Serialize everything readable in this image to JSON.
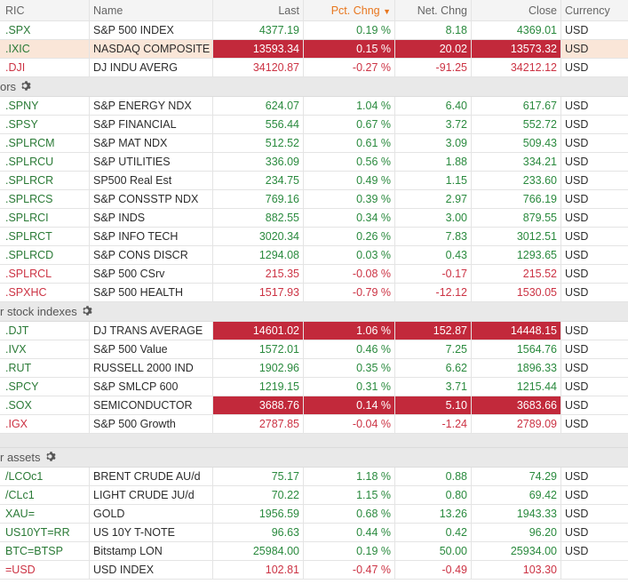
{
  "columns": {
    "ric": "RIC",
    "name": "Name",
    "last": "Last",
    "pct": "Pct. Chng",
    "sort_arrow": "▼",
    "net": "Net. Chng",
    "close": "Close",
    "currency": "Currency"
  },
  "group1": [
    {
      "ric": ".SPX",
      "name": "S&P 500 INDEX",
      "last": "4377.19",
      "pct": "0.19 %",
      "net": "8.18",
      "close": "4369.01",
      "ccy": "USD",
      "dir": "up"
    },
    {
      "ric": ".IXIC",
      "name": "NASDAQ COMPOSITE",
      "last": "13593.34",
      "pct": "0.15 %",
      "net": "20.02",
      "close": "13573.32",
      "ccy": "USD",
      "dir": "up",
      "highlight": "peach-red"
    },
    {
      "ric": ".DJI",
      "name": "DJ INDU AVERG",
      "last": "34120.87",
      "pct": "-0.27 %",
      "net": "-91.25",
      "close": "34212.12",
      "ccy": "USD",
      "dir": "down"
    }
  ],
  "section2": {
    "label": "ors"
  },
  "group2": [
    {
      "ric": ".SPNY",
      "name": "S&P ENERGY NDX",
      "last": "624.07",
      "pct": "1.04 %",
      "net": "6.40",
      "close": "617.67",
      "ccy": "USD",
      "dir": "up"
    },
    {
      "ric": ".SPSY",
      "name": "S&P FINANCIAL",
      "last": "556.44",
      "pct": "0.67 %",
      "net": "3.72",
      "close": "552.72",
      "ccy": "USD",
      "dir": "up"
    },
    {
      "ric": ".SPLRCM",
      "name": "S&P MAT NDX",
      "last": "512.52",
      "pct": "0.61 %",
      "net": "3.09",
      "close": "509.43",
      "ccy": "USD",
      "dir": "up"
    },
    {
      "ric": ".SPLRCU",
      "name": "S&P UTILITIES",
      "last": "336.09",
      "pct": "0.56 %",
      "net": "1.88",
      "close": "334.21",
      "ccy": "USD",
      "dir": "up"
    },
    {
      "ric": ".SPLRCR",
      "name": "SP500 Real Est",
      "last": "234.75",
      "pct": "0.49 %",
      "net": "1.15",
      "close": "233.60",
      "ccy": "USD",
      "dir": "up"
    },
    {
      "ric": ".SPLRCS",
      "name": "S&P CONSSTP NDX",
      "last": "769.16",
      "pct": "0.39 %",
      "net": "2.97",
      "close": "766.19",
      "ccy": "USD",
      "dir": "up"
    },
    {
      "ric": ".SPLRCI",
      "name": "S&P INDS",
      "last": "882.55",
      "pct": "0.34 %",
      "net": "3.00",
      "close": "879.55",
      "ccy": "USD",
      "dir": "up"
    },
    {
      "ric": ".SPLRCT",
      "name": "S&P INFO TECH",
      "last": "3020.34",
      "pct": "0.26 %",
      "net": "7.83",
      "close": "3012.51",
      "ccy": "USD",
      "dir": "up"
    },
    {
      "ric": ".SPLRCD",
      "name": "S&P CONS DISCR",
      "last": "1294.08",
      "pct": "0.03 %",
      "net": "0.43",
      "close": "1293.65",
      "ccy": "USD",
      "dir": "up"
    },
    {
      "ric": ".SPLRCL",
      "name": "S&P 500 CSrv",
      "last": "215.35",
      "pct": "-0.08 %",
      "net": "-0.17",
      "close": "215.52",
      "ccy": "USD",
      "dir": "down"
    },
    {
      "ric": ".SPXHC",
      "name": "S&P 500 HEALTH",
      "last": "1517.93",
      "pct": "-0.79 %",
      "net": "-12.12",
      "close": "1530.05",
      "ccy": "USD",
      "dir": "down"
    }
  ],
  "section3": {
    "label": "r stock indexes"
  },
  "group3": [
    {
      "ric": ".DJT",
      "name": "DJ TRANS AVERAGE",
      "last": "14601.02",
      "pct": "1.06 %",
      "net": "152.87",
      "close": "14448.15",
      "ccy": "USD",
      "dir": "up",
      "highlight": "red"
    },
    {
      "ric": ".IVX",
      "name": "S&P 500 Value",
      "last": "1572.01",
      "pct": "0.46 %",
      "net": "7.25",
      "close": "1564.76",
      "ccy": "USD",
      "dir": "up"
    },
    {
      "ric": ".RUT",
      "name": "RUSSELL 2000 IND",
      "last": "1902.96",
      "pct": "0.35 %",
      "net": "6.62",
      "close": "1896.33",
      "ccy": "USD",
      "dir": "up"
    },
    {
      "ric": ".SPCY",
      "name": "S&P SMLCP 600",
      "last": "1219.15",
      "pct": "0.31 %",
      "net": "3.71",
      "close": "1215.44",
      "ccy": "USD",
      "dir": "up"
    },
    {
      "ric": ".SOX",
      "name": "SEMICONDUCTOR",
      "last": "3688.76",
      "pct": "0.14 %",
      "net": "5.10",
      "close": "3683.66",
      "ccy": "USD",
      "dir": "up",
      "highlight": "red"
    },
    {
      "ric": ".IGX",
      "name": "S&P 500 Growth",
      "last": "2787.85",
      "pct": "-0.04 %",
      "net": "-1.24",
      "close": "2789.09",
      "ccy": "USD",
      "dir": "down"
    }
  ],
  "section4": {
    "label": "r assets"
  },
  "group4": [
    {
      "ric": "/LCOc1",
      "name": "BRENT CRUDE AU/d",
      "last": "75.17",
      "pct": "1.18 %",
      "net": "0.88",
      "close": "74.29",
      "ccy": "USD",
      "dir": "up"
    },
    {
      "ric": "/CLc1",
      "name": "LIGHT CRUDE JU/d",
      "last": "70.22",
      "pct": "1.15 %",
      "net": "0.80",
      "close": "69.42",
      "ccy": "USD",
      "dir": "up"
    },
    {
      "ric": "XAU=",
      "name": "GOLD",
      "last": "1956.59",
      "pct": "0.68 %",
      "net": "13.26",
      "close": "1943.33",
      "ccy": "USD",
      "dir": "up"
    },
    {
      "ric": "US10YT=RR",
      "name": "US 10Y T-NOTE",
      "last": "96.63",
      "pct": "0.44 %",
      "net": "0.42",
      "close": "96.20",
      "ccy": "USD",
      "dir": "up"
    },
    {
      "ric": "BTC=BTSP",
      "name": "Bitstamp LON",
      "last": "25984.00",
      "pct": "0.19 %",
      "net": "50.00",
      "close": "25934.00",
      "ccy": "USD",
      "dir": "up"
    },
    {
      "ric": "=USD",
      "name": "USD INDEX",
      "last": "102.81",
      "pct": "-0.47 %",
      "net": "-0.49",
      "close": "103.30",
      "ccy": "",
      "dir": "down"
    }
  ],
  "colors": {
    "up": "#2a8a3e",
    "down": "#cc3344",
    "highlight_red": "#c2293b",
    "highlight_peach": "#fae6d8",
    "sort_accent": "#e8761e"
  }
}
